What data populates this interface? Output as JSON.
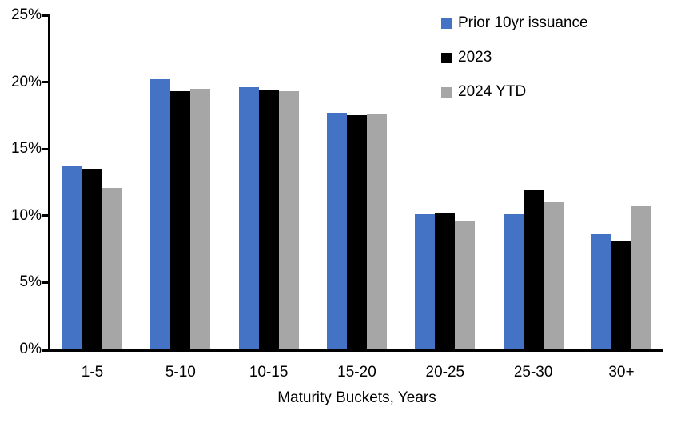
{
  "chart_data": {
    "type": "bar",
    "title": "",
    "xlabel": "Maturity Buckets, Years",
    "ylabel": "",
    "ylim": [
      0,
      25
    ],
    "ytick_step": 5,
    "ytick_labels": [
      "0%",
      "5%",
      "10%",
      "15%",
      "20%",
      "25%"
    ],
    "grid": false,
    "legend_position": "top-right",
    "axis_color": "#000000",
    "background_color": "#FFFFFF",
    "categories": [
      "1-5",
      "5-10",
      "10-15",
      "15-20",
      "20-25",
      "25-30",
      "30+"
    ],
    "series": [
      {
        "name": "Prior 10yr issuance",
        "color": "#4472C4",
        "values": [
          13.7,
          20.2,
          19.6,
          17.7,
          10.1,
          10.1,
          8.6
        ]
      },
      {
        "name": "2023",
        "color": "#000000",
        "values": [
          13.5,
          19.3,
          19.4,
          17.5,
          10.2,
          11.9,
          8.1
        ]
      },
      {
        "name": "2024 YTD",
        "color": "#A6A6A6",
        "values": [
          12.1,
          19.5,
          19.3,
          17.6,
          9.6,
          11.0,
          10.7
        ]
      }
    ]
  }
}
